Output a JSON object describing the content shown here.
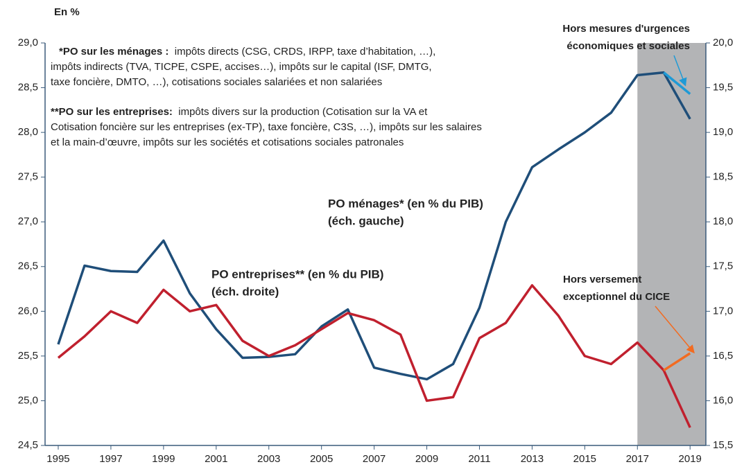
{
  "chart_data": {
    "type": "line",
    "unit_label": "En %",
    "x": [
      1995,
      1996,
      1997,
      1998,
      1999,
      2000,
      2001,
      2002,
      2003,
      2004,
      2005,
      2006,
      2007,
      2008,
      2009,
      2010,
      2011,
      2012,
      2013,
      2014,
      2015,
      2016,
      2017,
      2018,
      2019
    ],
    "xlim": [
      1994.5,
      2019.6
    ],
    "xticks": [
      1995,
      1997,
      1999,
      2001,
      2003,
      2005,
      2007,
      2009,
      2011,
      2013,
      2015,
      2017,
      2019
    ],
    "ylim": [
      24.5,
      29.0
    ],
    "yticks": [
      {
        "value": 24.5,
        "label": "24,5"
      },
      {
        "value": 25.0,
        "label": "25,0"
      },
      {
        "value": 25.5,
        "label": "25,5"
      },
      {
        "value": 26.0,
        "label": "26,0"
      },
      {
        "value": 26.5,
        "label": "26,5"
      },
      {
        "value": 27.0,
        "label": "27,0"
      },
      {
        "value": 27.5,
        "label": "27,5"
      },
      {
        "value": 28.0,
        "label": "28,0"
      },
      {
        "value": 28.5,
        "label": "28,5"
      },
      {
        "value": 29.0,
        "label": "29,0"
      }
    ],
    "y2lim": [
      15.5,
      20.0
    ],
    "y2ticks": [
      {
        "value": 15.5,
        "label": "15,5"
      },
      {
        "value": 16.0,
        "label": "16,0"
      },
      {
        "value": 16.5,
        "label": "16,5"
      },
      {
        "value": 17.0,
        "label": "17,0"
      },
      {
        "value": 17.5,
        "label": "17,5"
      },
      {
        "value": 18.0,
        "label": "18,0"
      },
      {
        "value": 18.5,
        "label": "18,5"
      },
      {
        "value": 19.0,
        "label": "19,0"
      },
      {
        "value": 19.5,
        "label": "19,5"
      },
      {
        "value": 20.0,
        "label": "20,0"
      }
    ],
    "shade_from": 2017,
    "shade_color": "#b3b4b6",
    "series": [
      {
        "label": [
          "PO ménages* (en % du PIB)",
          "(éch. gauche)"
        ],
        "color": "#1f4e79",
        "axis": "y",
        "values": [
          25.63,
          26.51,
          26.45,
          26.44,
          26.79,
          26.2,
          25.8,
          25.48,
          25.49,
          25.52,
          25.83,
          26.02,
          25.37,
          25.3,
          25.24,
          25.41,
          26.04,
          27.0,
          27.61,
          27.81,
          28.0,
          28.22,
          28.64,
          28.67,
          28.15
        ]
      },
      {
        "label": [
          "PO entreprises** (en % du PIB)",
          "(éch. droite)"
        ],
        "color": "#c0202e",
        "axis": "y2",
        "values": [
          16.48,
          16.72,
          17.0,
          16.87,
          17.24,
          17.0,
          17.07,
          16.67,
          16.5,
          16.62,
          16.8,
          16.98,
          16.9,
          16.74,
          16.0,
          16.04,
          16.7,
          16.87,
          17.29,
          16.95,
          16.5,
          16.41,
          16.65,
          16.34,
          15.7
        ]
      },
      {
        "label": [
          "Hors mesures d'urgences",
          "économiques et sociales"
        ],
        "color": "#1e9ad6",
        "axis": "y",
        "x": [
          2018,
          2019
        ],
        "values": [
          28.67,
          28.43
        ]
      },
      {
        "label": [
          "Hors versement",
          "exceptionnel du CICE"
        ],
        "color": "#f26b21",
        "axis": "y2",
        "x": [
          2018,
          2019
        ],
        "values": [
          16.34,
          16.53
        ]
      }
    ],
    "notes": [
      {
        "bold": "*PO sur les ménages :",
        "lines": [
          "impôts directs (CSG, CRDS, IRPP, taxe d’habitation, …),",
          "impôts indirects (TVA, TICPE, CSPE, accises…), impôts sur le capital (ISF, DMTG,",
          "taxe foncière, DMTO, …), cotisations sociales salariées et non salariées"
        ]
      },
      {
        "bold": "**PO sur les entreprises:",
        "lines": [
          "impôts divers sur la production (Cotisation sur la VA et",
          "Cotisation foncière sur les entreprises (ex-TP), taxe foncière, C3S, …), impôts sur les salaires",
          "et la main-d’œuvre, impôts sur les sociétés et cotisations sociales patronales"
        ]
      }
    ]
  }
}
